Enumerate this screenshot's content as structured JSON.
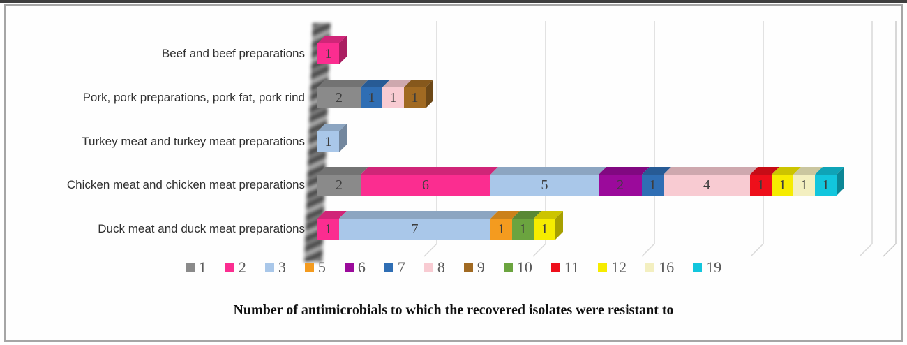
{
  "chart_data": {
    "type": "bar",
    "subtype": "horizontal-stacked-3d",
    "title": "Number of antimicrobials to which the recovered isolates were resistant to",
    "categories": [
      "Beef and beef preparations",
      "Pork, pork preparations, pork fat, pork rind",
      "Turkey meat and turkey meat preparations",
      "Chicken meat and chicken meat preparations",
      "Duck meat and duck meat preparations"
    ],
    "legend": [
      {
        "label": "1",
        "color": "#8a8a8a"
      },
      {
        "label": "2",
        "color": "#fb2d90"
      },
      {
        "label": "3",
        "color": "#a9c7e9"
      },
      {
        "label": "5",
        "color": "#f49b1f"
      },
      {
        "label": "6",
        "color": "#9b0a9b"
      },
      {
        "label": "7",
        "color": "#2f6eb4"
      },
      {
        "label": "8",
        "color": "#f8cbd2"
      },
      {
        "label": "9",
        "color": "#a16a22"
      },
      {
        "label": "10",
        "color": "#6ba43f"
      },
      {
        "label": "11",
        "color": "#ee0f1b"
      },
      {
        "label": "12",
        "color": "#f6ec00"
      },
      {
        "label": "16",
        "color": "#f3efc0"
      },
      {
        "label": "19",
        "color": "#12c6dd"
      }
    ],
    "legend_position": "bottom",
    "rows": [
      {
        "category": "Beef and beef preparations",
        "segments": [
          {
            "series": "2",
            "value": 1
          }
        ]
      },
      {
        "category": "Pork, pork preparations, pork fat, pork rind",
        "segments": [
          {
            "series": "1",
            "value": 2
          },
          {
            "series": "7",
            "value": 1
          },
          {
            "series": "8",
            "value": 1
          },
          {
            "series": "9",
            "value": 1
          }
        ]
      },
      {
        "category": "Turkey meat and turkey meat preparations",
        "segments": [
          {
            "series": "3",
            "value": 1
          }
        ]
      },
      {
        "category": "Chicken meat and chicken meat preparations",
        "segments": [
          {
            "series": "1",
            "value": 2
          },
          {
            "series": "2",
            "value": 6
          },
          {
            "series": "3",
            "value": 5
          },
          {
            "series": "6",
            "value": 2
          },
          {
            "series": "7",
            "value": 1
          },
          {
            "series": "8",
            "value": 4
          },
          {
            "series": "11",
            "value": 1
          },
          {
            "series": "12",
            "value": 1
          },
          {
            "series": "16",
            "value": 1
          },
          {
            "series": "19",
            "value": 1
          }
        ]
      },
      {
        "category": "Duck meat and duck meat preparations",
        "segments": [
          {
            "series": "2",
            "value": 1
          },
          {
            "series": "3",
            "value": 7
          },
          {
            "series": "5",
            "value": 1
          },
          {
            "series": "10",
            "value": 1
          },
          {
            "series": "12",
            "value": 1
          }
        ]
      }
    ],
    "axis": {
      "min": 0,
      "max": 26,
      "gridline_values": [
        5,
        10,
        15,
        20,
        25
      ],
      "grid": true,
      "tick_labels_visible": false
    },
    "gridline_color": "#d9d9d9",
    "bar_number_color": "#3d3d3d"
  }
}
